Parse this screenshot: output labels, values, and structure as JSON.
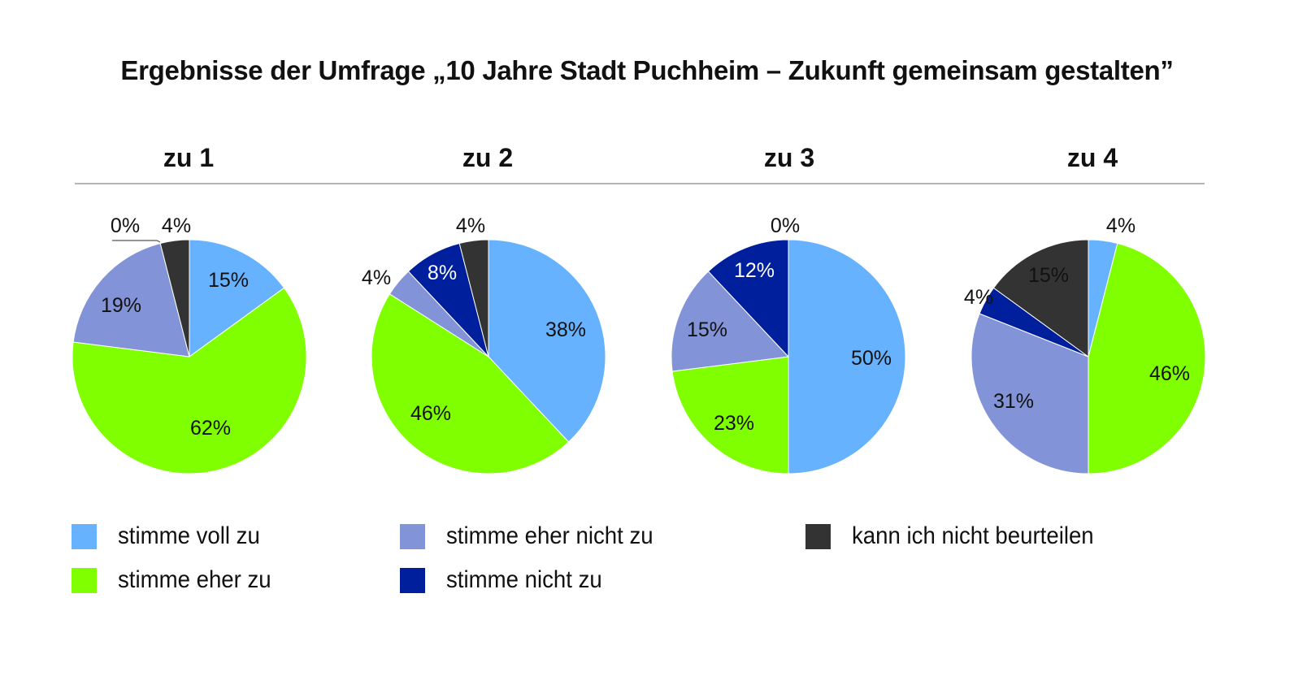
{
  "title": "Ergebnisse der Umfrage „10 Jahre Stadt Puchheim – Zukunft gemeinsam gestalten”",
  "colors": {
    "stimme voll zu": "#66b2ff",
    "stimme eher zu": "#80ff00",
    "stimme eher nicht zu": "#8293d8",
    "stimme nicht zu": "#001f9c",
    "kann ich nicht beurteilen": "#333333"
  },
  "legend": [
    {
      "label": "stimme voll zu",
      "color": "#66b2ff"
    },
    {
      "label": "stimme eher zu",
      "color": "#80ff00"
    },
    {
      "label": "stimme eher nicht zu",
      "color": "#8293d8"
    },
    {
      "label": "stimme nicht zu",
      "color": "#001f9c"
    },
    {
      "label": "kann ich nicht beurteilen",
      "color": "#333333"
    }
  ],
  "chart_data": [
    {
      "type": "pie",
      "title": "zu 1",
      "categories": [
        "stimme voll zu",
        "stimme eher zu",
        "stimme eher nicht zu",
        "stimme nicht zu",
        "kann ich nicht beurteilen"
      ],
      "values": [
        15,
        62,
        19,
        0,
        4
      ],
      "labels": [
        "15%",
        "62%",
        "19%",
        "0%",
        "4%"
      ]
    },
    {
      "type": "pie",
      "title": "zu 2",
      "categories": [
        "stimme voll zu",
        "stimme eher zu",
        "stimme eher nicht zu",
        "stimme nicht zu",
        "kann ich nicht beurteilen"
      ],
      "values": [
        38,
        46,
        4,
        8,
        4
      ],
      "labels": [
        "38%",
        "46%",
        "4%",
        "8%",
        "4%"
      ]
    },
    {
      "type": "pie",
      "title": "zu 3",
      "categories": [
        "stimme voll zu",
        "stimme eher zu",
        "stimme eher nicht zu",
        "stimme nicht zu",
        "kann ich nicht beurteilen"
      ],
      "values": [
        50,
        23,
        15,
        12,
        0
      ],
      "labels": [
        "50%",
        "23%",
        "15%",
        "12%",
        "0%"
      ]
    },
    {
      "type": "pie",
      "title": "zu 4",
      "categories": [
        "stimme voll zu",
        "stimme eher zu",
        "stimme eher nicht zu",
        "stimme nicht zu",
        "kann ich nicht beurteilen"
      ],
      "values": [
        4,
        46,
        31,
        4,
        15
      ],
      "labels": [
        "4%",
        "46%",
        "31%",
        "4%",
        "15%"
      ]
    }
  ]
}
